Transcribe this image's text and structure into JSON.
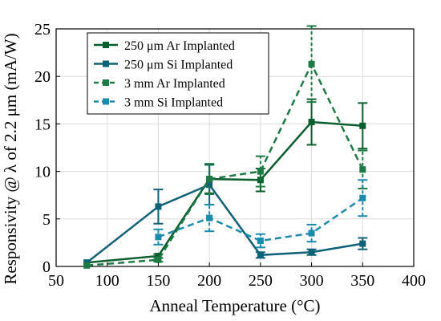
{
  "chart_data": {
    "type": "line",
    "title": "",
    "xlabel": "Anneal Temperature (°C)",
    "ylabel": "Responsivity @ λ of 2.2 μm (mA/W)",
    "xlim": [
      50,
      400
    ],
    "ylim": [
      0,
      25
    ],
    "xticks": [
      50,
      100,
      150,
      200,
      250,
      300,
      350,
      400
    ],
    "yticks": [
      0,
      5,
      10,
      15,
      20,
      25
    ],
    "grid": true,
    "legend_position": "top-left",
    "series": [
      {
        "name": "250 μm Ar Implanted",
        "color": "#0b5e2e",
        "dash": "solid",
        "x": [
          80,
          150,
          200,
          250,
          300,
          350
        ],
        "y": [
          0.4,
          1.1,
          9.2,
          9.1,
          15.2,
          14.8
        ],
        "err": [
          0.0,
          0.2,
          1.5,
          1.2,
          2.4,
          2.4
        ]
      },
      {
        "name": "250 μm Si Implanted",
        "color": "#0f6178",
        "dash": "solid",
        "x": [
          80,
          150,
          200,
          250,
          300,
          350
        ],
        "y": [
          0.4,
          6.3,
          8.6,
          1.2,
          1.5,
          2.4
        ],
        "err": [
          0.0,
          1.8,
          2.1,
          0.3,
          0.3,
          0.6
        ]
      },
      {
        "name": "3 mm Ar Implanted",
        "color": "#1e7a45",
        "dash": "dashed",
        "x": [
          80,
          150,
          200,
          250,
          300,
          350
        ],
        "y": [
          0.1,
          0.7,
          9.2,
          10.0,
          21.3,
          10.2
        ],
        "err": [
          0.0,
          0.2,
          1.6,
          1.6,
          4.0,
          2.0
        ]
      },
      {
        "name": "3 mm Si Implanted",
        "color": "#1a8aad",
        "dash": "dashed",
        "x": [
          150,
          200,
          250,
          300,
          350
        ],
        "y": [
          3.1,
          5.1,
          2.7,
          3.5,
          7.2
        ],
        "err": [
          0.8,
          1.4,
          0.7,
          0.9,
          1.9
        ]
      }
    ]
  }
}
